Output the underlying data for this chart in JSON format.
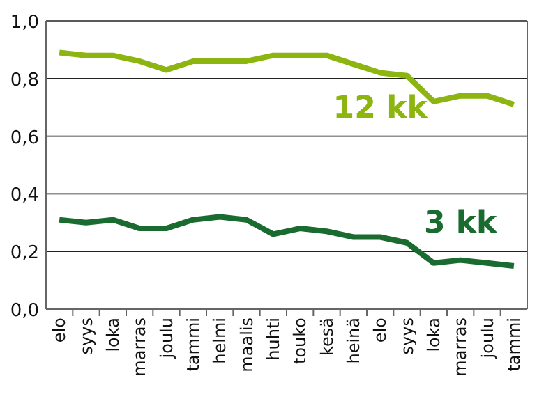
{
  "chart_data": {
    "type": "line",
    "categories": [
      "elo",
      "syys",
      "loka",
      "marras",
      "joulu",
      "tammi",
      "helmi",
      "maalis",
      "huhti",
      "touko",
      "kesä",
      "heinä",
      "elo",
      "syys",
      "loka",
      "marras",
      "joulu",
      "tammi"
    ],
    "series": [
      {
        "name": "12 kk",
        "color": "#8db510",
        "values": [
          0.89,
          0.88,
          0.88,
          0.86,
          0.83,
          0.86,
          0.86,
          0.86,
          0.88,
          0.88,
          0.88,
          0.85,
          0.82,
          0.81,
          0.72,
          0.74,
          0.74,
          0.71
        ]
      },
      {
        "name": "3 kk",
        "color": "#1a6b30",
        "values": [
          0.31,
          0.3,
          0.31,
          0.28,
          0.28,
          0.31,
          0.32,
          0.31,
          0.26,
          0.28,
          0.27,
          0.25,
          0.25,
          0.23,
          0.16,
          0.17,
          0.16,
          0.15
        ]
      }
    ],
    "ylim": [
      0,
      1
    ],
    "yticks": [
      {
        "value": 0,
        "label": "0,0"
      },
      {
        "value": 0.2,
        "label": "0,2"
      },
      {
        "value": 0.4,
        "label": "0,4"
      },
      {
        "value": 0.6,
        "label": "0,6"
      },
      {
        "value": 0.8,
        "label": "0,8"
      },
      {
        "value": 1,
        "label": "1,0"
      }
    ],
    "grid": "y",
    "marker": "none",
    "line_style": "solid"
  }
}
